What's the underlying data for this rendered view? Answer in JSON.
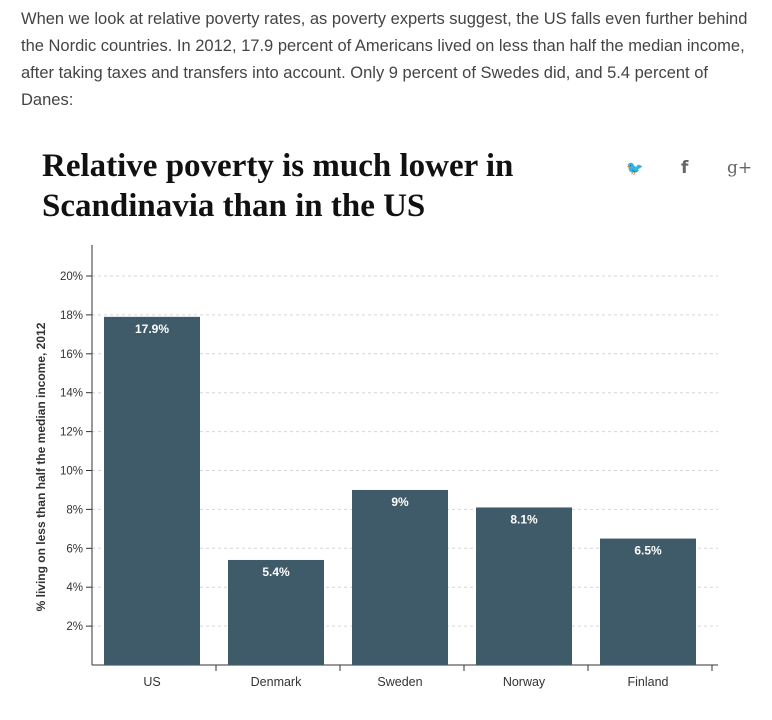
{
  "article": {
    "intro": "When we look at relative poverty rates, as poverty experts suggest, the US falls even further behind the Nordic countries. In 2012, 17.9 percent of Americans lived on less than half the median income, after taking taxes and transfers into account. Only 9 percent of Swedes did, and 5.4 percent of Danes:"
  },
  "share": {
    "twitter_icon": "twitter-icon",
    "twitter_glyph": "🐦",
    "facebook_icon": "facebook-icon",
    "facebook_glyph": "f",
    "googleplus_icon": "google-plus-icon",
    "googleplus_glyph": "g+"
  },
  "colors": {
    "bar": "#3f5a68",
    "grid": "#d6d6d6",
    "axis": "#333333",
    "label": "#ffffff"
  },
  "chart_data": {
    "type": "bar",
    "title": "Relative poverty is much lower in Scandinavia than in the US",
    "xlabel": "",
    "ylabel": "% living on less than half the median income, 2012",
    "categories": [
      "US",
      "Denmark",
      "Sweden",
      "Norway",
      "Finland"
    ],
    "values": [
      17.9,
      5.4,
      9,
      8.1,
      6.5
    ],
    "data_labels": [
      "17.9%",
      "5.4%",
      "9%",
      "8.1%",
      "6.5%"
    ],
    "ylim": [
      0,
      22
    ],
    "yticks": [
      2,
      4,
      6,
      8,
      10,
      12,
      14,
      16,
      18,
      20
    ],
    "ytick_labels": [
      "2%",
      "4%",
      "6%",
      "8%",
      "10%",
      "12%",
      "14%",
      "16%",
      "18%",
      "20%"
    ],
    "grid": true,
    "legend": "none"
  }
}
